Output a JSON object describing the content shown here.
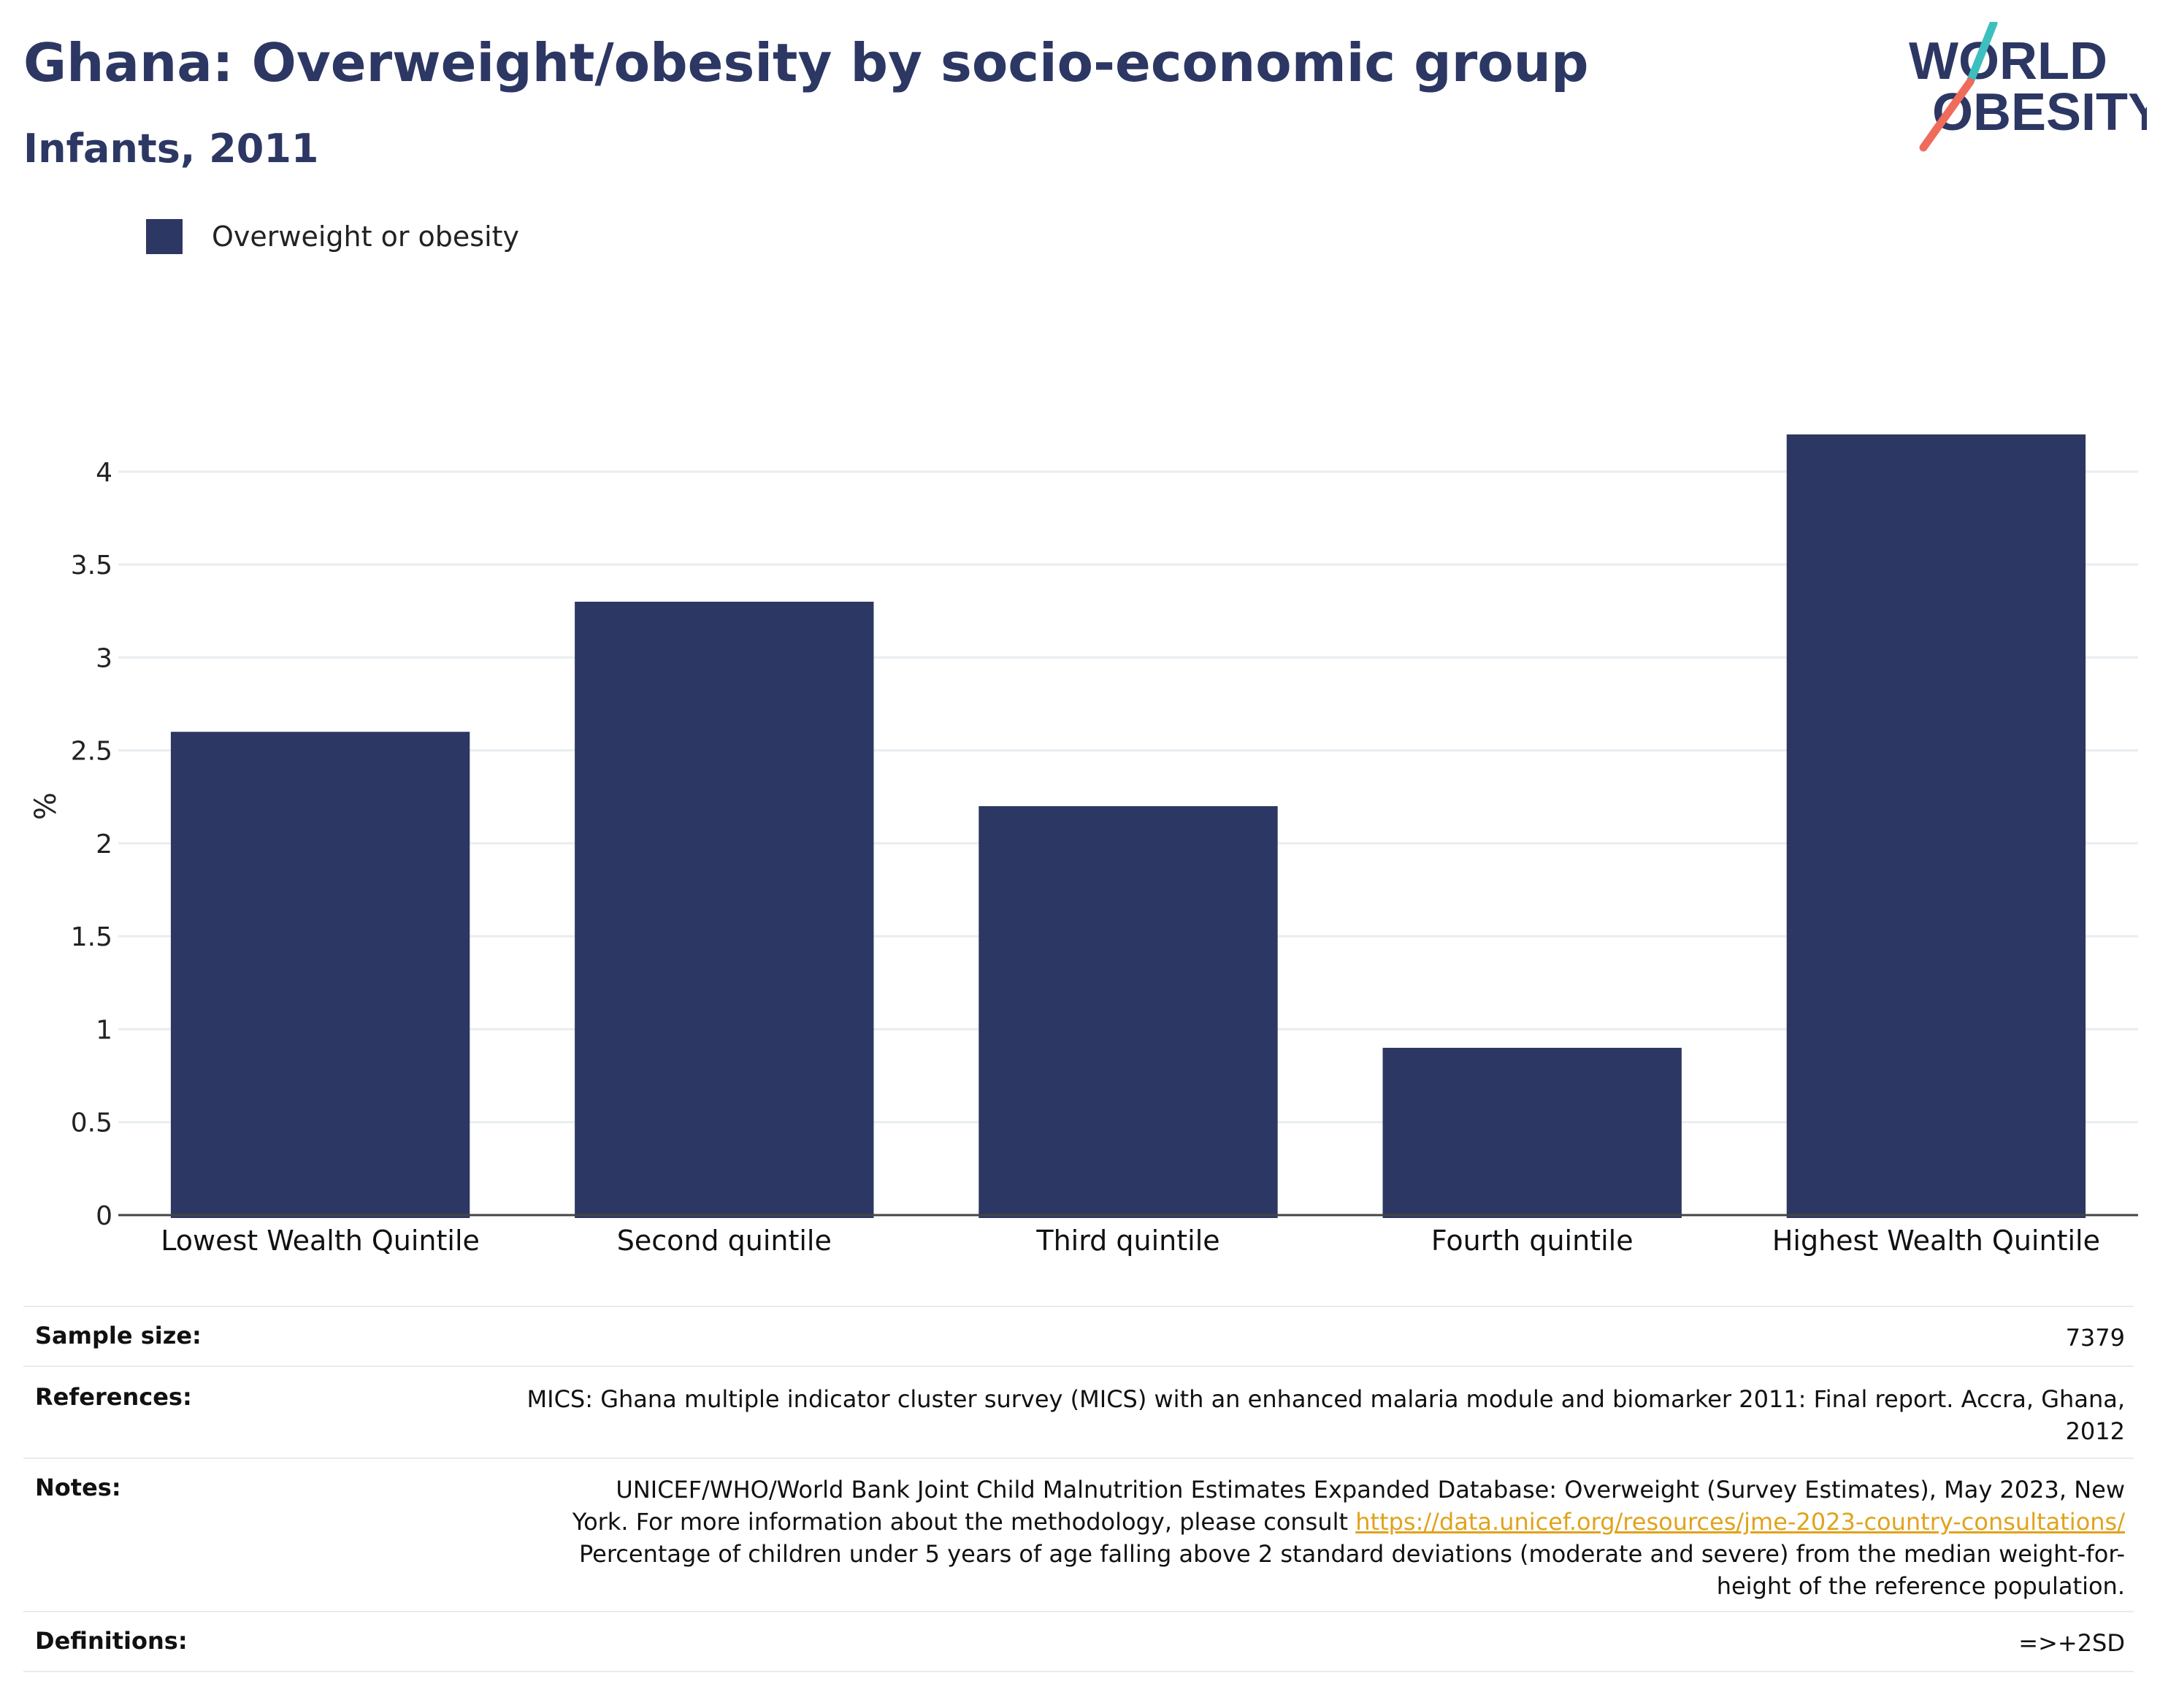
{
  "header": {
    "title": "Ghana: Overweight/obesity by socio-economic group",
    "subtitle": "Infants, 2011"
  },
  "logo": {
    "line1": "WORLD",
    "line2": "OBESITY",
    "colors": {
      "text": "#2c3763",
      "slash_top": "#3dbfbf",
      "slash_bottom": "#ef6b5b"
    }
  },
  "chart_data": {
    "type": "bar",
    "categories": [
      "Lowest Wealth Quintile",
      "Second quintile",
      "Third quintile",
      "Fourth quintile",
      "Highest Wealth Quintile"
    ],
    "series": [
      {
        "name": "Overweight or obesity",
        "values": [
          2.6,
          3.3,
          2.2,
          0.9,
          4.2
        ],
        "color": "#2c3763"
      }
    ],
    "title": "",
    "xlabel": "",
    "ylabel": "%",
    "ylim": [
      0,
      4.4
    ],
    "yticks": [
      0,
      0.5,
      1,
      1.5,
      2,
      2.5,
      3,
      3.5,
      4
    ],
    "ytick_labels": [
      "0",
      "0.5",
      "1",
      "1.5",
      "2",
      "2.5",
      "3",
      "3.5",
      "4"
    ],
    "grid": true,
    "legend": "top-left"
  },
  "meta": {
    "sample_size": {
      "label": "Sample size:",
      "value": "7379"
    },
    "references": {
      "label": "References:",
      "line1": "MICS: Ghana multiple indicator cluster survey (MICS) with an enhanced malaria module and biomarker 2011: Final report. Accra, Ghana,",
      "line2": "2012"
    },
    "notes": {
      "label": "Notes:",
      "line1": "UNICEF/WHO/World Bank Joint Child Malnutrition Estimates Expanded Database: Overweight (Survey Estimates), May 2023, New",
      "line2_prefix": "York. For more information about the methodology, please consult ",
      "link": "https://data.unicef.org/resources/jme-2023-country-consultations/",
      "line3": "Percentage of children under 5 years of age falling above 2 standard deviations (moderate and severe) from the median weight-for-",
      "line4": "height of the reference population."
    },
    "definitions": {
      "label": "Definitions:",
      "value": "=>+2SD"
    }
  }
}
